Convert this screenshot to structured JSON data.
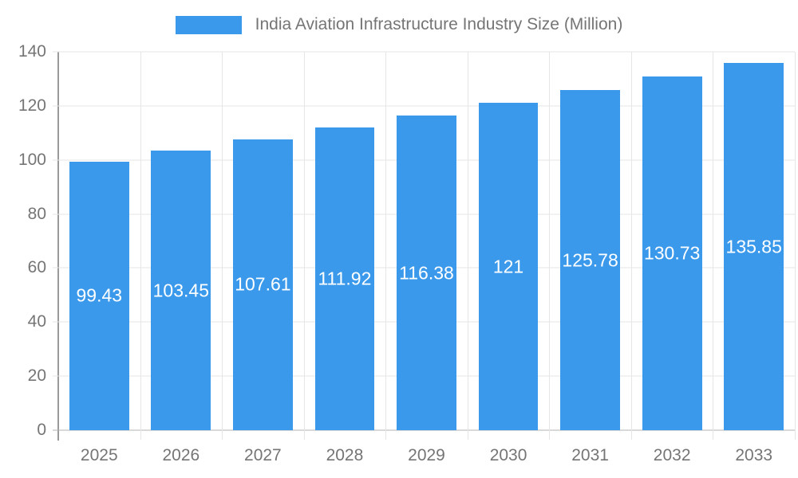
{
  "chart_data": {
    "type": "bar",
    "title": "India Aviation Infrastructure Industry Size (Million)",
    "categories": [
      "2025",
      "2026",
      "2027",
      "2028",
      "2029",
      "2030",
      "2031",
      "2032",
      "2033"
    ],
    "values": [
      99.43,
      103.45,
      107.61,
      111.92,
      116.38,
      121,
      125.78,
      130.73,
      135.85
    ],
    "value_labels": [
      "99.43",
      "103.45",
      "107.61",
      "111.92",
      "116.38",
      "121",
      "125.78",
      "130.73",
      "135.85"
    ],
    "xlabel": "",
    "ylabel": "",
    "ylim": [
      0,
      140
    ],
    "yticks": [
      0,
      20,
      40,
      60,
      80,
      100,
      120,
      140
    ],
    "grid": true,
    "legend_position": "top-center",
    "colors": {
      "bar": "#3B99EC",
      "gridline": "#E6E6E6",
      "baseline": "#B3B3B3",
      "axis_line": "#9A9A9A",
      "axis_text": "#757575",
      "value_label_text": "#FFFFFF",
      "background": "#FFFFFF"
    }
  }
}
